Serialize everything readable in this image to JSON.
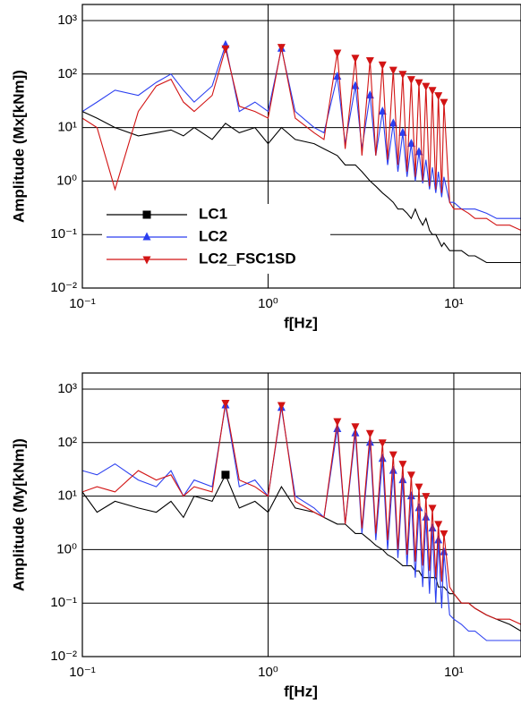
{
  "chart_data": [
    {
      "type": "line",
      "xlabel": "f[Hz]",
      "ylabel": "Amplitude (Mx[kNm])",
      "xlog": true,
      "ylog": true,
      "grid": true,
      "legend": "lower left",
      "xlim": [
        0.1,
        23
      ],
      "ylim": [
        0.01,
        2000
      ],
      "xticks": [
        {
          "value": 0.1,
          "label": "10⁻¹"
        },
        {
          "value": 1,
          "label": "10⁰"
        },
        {
          "value": 10,
          "label": "10¹"
        }
      ],
      "yticks": [
        {
          "value": 0.01,
          "label": "10⁻²"
        },
        {
          "value": 0.1,
          "label": "10⁻¹"
        },
        {
          "value": 1,
          "label": "10⁰"
        },
        {
          "value": 10,
          "label": "10¹"
        },
        {
          "value": 100,
          "label": "10²"
        },
        {
          "value": 1000,
          "label": "10³"
        }
      ],
      "x": [
        0.1,
        0.12,
        0.15,
        0.2,
        0.25,
        0.3,
        0.35,
        0.4,
        0.5,
        0.59,
        0.7,
        0.85,
        1.0,
        1.18,
        1.4,
        1.77,
        2.0,
        2.36,
        2.6,
        2.95,
        3.2,
        3.54,
        3.8,
        4.13,
        4.4,
        4.72,
        5.0,
        5.31,
        5.6,
        5.9,
        6.2,
        6.49,
        6.8,
        7.08,
        7.4,
        7.67,
        8.0,
        8.26,
        8.6,
        8.85,
        9.5,
        10,
        11,
        12,
        13,
        15,
        17,
        20,
        23
      ],
      "series": [
        {
          "name": "LC1",
          "color": "#000000",
          "marker": "square",
          "values": [
            20,
            15,
            10,
            7,
            8,
            9,
            7,
            10,
            6,
            12,
            8,
            10,
            5,
            10,
            6,
            5,
            4,
            3,
            2,
            2,
            1.5,
            1,
            0.8,
            0.6,
            0.5,
            0.4,
            0.3,
            0.3,
            0.25,
            0.2,
            0.3,
            0.2,
            0.15,
            0.2,
            0.12,
            0.1,
            0.1,
            0.08,
            0.06,
            0.07,
            0.05,
            0.05,
            0.05,
            0.04,
            0.04,
            0.03,
            0.03,
            0.03,
            0.03
          ]
        },
        {
          "name": "LC2",
          "color": "#2b3ff0",
          "marker": "triangle-up",
          "values": [
            20,
            30,
            50,
            40,
            70,
            100,
            50,
            30,
            60,
            350,
            20,
            30,
            20,
            300,
            20,
            10,
            8,
            90,
            5,
            60,
            4,
            40,
            3,
            20,
            2,
            12,
            1.5,
            8,
            1.2,
            5,
            1,
            3.5,
            0.9,
            2.5,
            0.7,
            1.8,
            0.6,
            1.5,
            0.5,
            1.2,
            0.4,
            0.4,
            0.3,
            0.3,
            0.3,
            0.25,
            0.2,
            0.2,
            0.2
          ]
        },
        {
          "name": "LC2_FSC1SD",
          "color": "#d21414",
          "marker": "triangle-down",
          "values": [
            15,
            10,
            0.7,
            20,
            60,
            80,
            30,
            20,
            40,
            300,
            25,
            20,
            15,
            320,
            15,
            8,
            6,
            250,
            4,
            200,
            3,
            180,
            3,
            150,
            2.5,
            120,
            2,
            100,
            1.5,
            80,
            1.2,
            70,
            1,
            60,
            0.8,
            50,
            0.7,
            40,
            0.6,
            30,
            0.4,
            0.3,
            0.3,
            0.25,
            0.2,
            0.2,
            0.15,
            0.15,
            0.12
          ]
        }
      ]
    },
    {
      "type": "line",
      "xlabel": "f[Hz]",
      "ylabel": "Amplitude (My[kNm])",
      "xlog": true,
      "ylog": true,
      "grid": true,
      "xlim": [
        0.1,
        23
      ],
      "ylim": [
        0.01,
        2000
      ],
      "xticks": [
        {
          "value": 0.1,
          "label": "10⁻¹"
        },
        {
          "value": 1,
          "label": "10⁰"
        },
        {
          "value": 10,
          "label": "10¹"
        }
      ],
      "yticks": [
        {
          "value": 0.01,
          "label": "10⁻²"
        },
        {
          "value": 0.1,
          "label": "10⁻¹"
        },
        {
          "value": 1,
          "label": "10⁰"
        },
        {
          "value": 10,
          "label": "10¹"
        },
        {
          "value": 100,
          "label": "10²"
        },
        {
          "value": 1000,
          "label": "10³"
        }
      ],
      "x": [
        0.1,
        0.12,
        0.15,
        0.2,
        0.25,
        0.3,
        0.35,
        0.4,
        0.5,
        0.59,
        0.7,
        0.85,
        1.0,
        1.18,
        1.4,
        1.77,
        2.0,
        2.36,
        2.6,
        2.95,
        3.2,
        3.54,
        3.8,
        4.13,
        4.4,
        4.72,
        5.0,
        5.31,
        5.6,
        5.9,
        6.2,
        6.49,
        6.8,
        7.08,
        7.4,
        7.67,
        8.0,
        8.26,
        8.6,
        8.85,
        9.5,
        10,
        11,
        12,
        13,
        15,
        17,
        20,
        23
      ],
      "series": [
        {
          "name": "LC1",
          "color": "#000000",
          "marker": "square",
          "values": [
            12,
            5,
            8,
            6,
            5,
            8,
            4,
            10,
            8,
            25,
            6,
            8,
            5,
            15,
            6,
            5,
            4,
            3,
            3,
            2,
            2,
            1.5,
            1.2,
            1,
            0.8,
            0.7,
            0.6,
            0.5,
            0.5,
            0.5,
            0.4,
            0.4,
            0.3,
            0.3,
            0.3,
            0.3,
            0.3,
            0.2,
            0.2,
            0.2,
            0.15,
            0.15,
            0.1,
            0.1,
            0.08,
            0.06,
            0.05,
            0.04,
            0.03
          ]
        },
        {
          "name": "LC2",
          "color": "#2b3ff0",
          "marker": "triangle-up",
          "values": [
            30,
            25,
            40,
            20,
            15,
            30,
            10,
            20,
            15,
            500,
            15,
            20,
            10,
            450,
            10,
            6,
            4,
            180,
            3,
            150,
            2,
            100,
            1.5,
            50,
            1,
            30,
            0.7,
            20,
            0.5,
            10,
            0.3,
            6,
            0.2,
            4,
            0.15,
            2.5,
            0.1,
            1.5,
            0.08,
            0.9,
            0.06,
            0.05,
            0.04,
            0.03,
            0.03,
            0.02,
            0.02,
            0.02,
            0.02
          ]
        },
        {
          "name": "LC2_FSC1SD",
          "color": "#d21414",
          "marker": "triangle-down",
          "values": [
            12,
            15,
            12,
            30,
            20,
            25,
            10,
            15,
            12,
            550,
            20,
            15,
            10,
            500,
            8,
            5,
            4,
            250,
            3,
            200,
            2.5,
            150,
            2,
            100,
            1.5,
            60,
            1,
            40,
            0.8,
            25,
            0.6,
            15,
            0.5,
            10,
            0.4,
            6,
            0.3,
            3,
            0.25,
            2,
            0.2,
            0.15,
            0.1,
            0.1,
            0.08,
            0.06,
            0.05,
            0.05,
            0.04
          ]
        }
      ]
    }
  ]
}
